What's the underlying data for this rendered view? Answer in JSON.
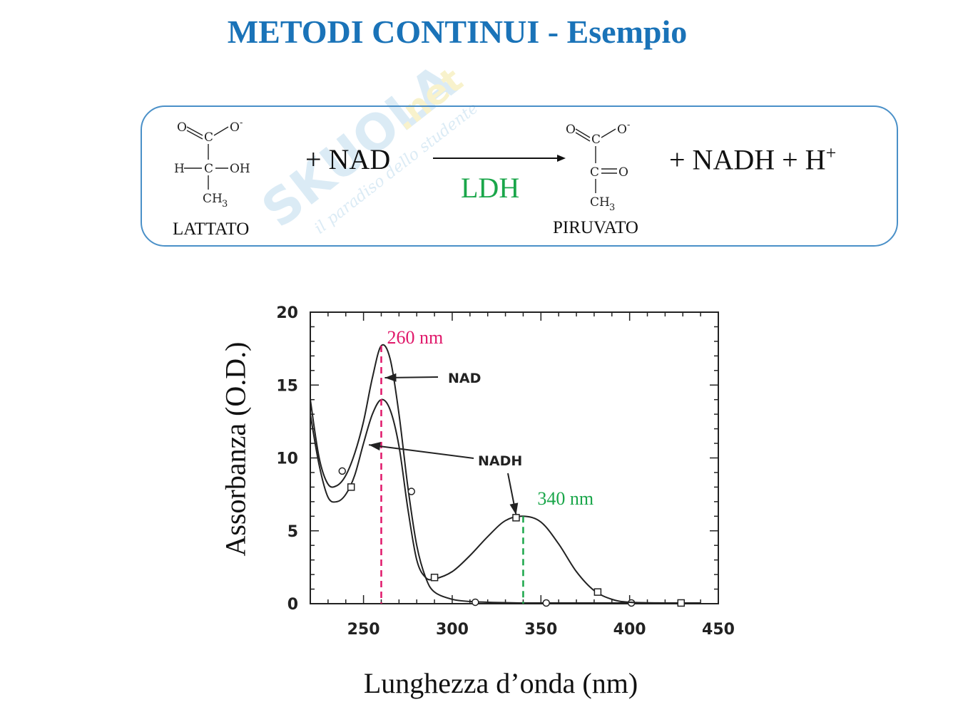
{
  "slide": {
    "title": "METODI CONTINUI - Esempio"
  },
  "watermark": {
    "brand": "SKUOLA",
    "tld": ".net",
    "tagline": "il paradiso dello studente"
  },
  "reaction": {
    "reactant_label": "LATTATO",
    "plus_nad": "+  NAD",
    "enzyme": "LDH",
    "product_label": "PIRUVATO",
    "products": "+ NADH + H",
    "h_charge": "+",
    "lattato_atoms": {
      "o_top": "O",
      "c1": "C",
      "o_minus": "O",
      "minus": "-",
      "h": "H",
      "c2": "C",
      "oh": "OH",
      "ch": "CH",
      "sub3": "3"
    },
    "piruvato_atoms": {
      "o_top": "O",
      "c1": "C",
      "o_minus": "O",
      "minus": "-",
      "c2": "C",
      "o_keto": "O",
      "ch": "CH",
      "sub3": "3"
    }
  },
  "chart_data": {
    "type": "line",
    "xlabel": "Lunghezza d’onda (nm)",
    "ylabel": "Assorbanza (O.D.)",
    "xlim": [
      220,
      450
    ],
    "ylim": [
      0,
      20
    ],
    "xticks": [
      250,
      300,
      350,
      400,
      450
    ],
    "yticks": [
      0,
      5,
      10,
      15,
      20
    ],
    "grid": false,
    "series": [
      {
        "name": "NAD",
        "marker": "circle",
        "x": [
          220,
          225,
          230,
          235,
          240,
          245,
          250,
          255,
          260,
          265,
          270,
          275,
          280,
          285,
          290,
          300,
          310,
          320,
          340,
          360,
          380,
          400,
          420,
          440
        ],
        "y": [
          14.0,
          10.0,
          8.2,
          8.1,
          8.8,
          10.3,
          12.5,
          15.5,
          17.7,
          16.8,
          13.0,
          8.0,
          4.0,
          1.8,
          0.8,
          0.3,
          0.15,
          0.1,
          0.05,
          0.05,
          0.05,
          0.05,
          0.05,
          0.05
        ],
        "markers_x": [
          238,
          277,
          313,
          353,
          401
        ],
        "markers_y": [
          9.1,
          7.7,
          0.1,
          0.05,
          0.05
        ]
      },
      {
        "name": "NADH",
        "marker": "square",
        "x": [
          220,
          225,
          230,
          235,
          240,
          245,
          250,
          255,
          260,
          265,
          270,
          275,
          280,
          285,
          290,
          300,
          310,
          320,
          330,
          340,
          350,
          360,
          370,
          380,
          390,
          400,
          420,
          440
        ],
        "y": [
          13.0,
          9.5,
          7.3,
          7.0,
          7.5,
          8.8,
          11.0,
          13.0,
          14.0,
          13.3,
          10.8,
          6.5,
          3.0,
          1.8,
          1.7,
          2.2,
          3.3,
          4.6,
          5.7,
          6.0,
          5.6,
          4.1,
          2.2,
          0.9,
          0.3,
          0.1,
          0.05,
          0.05
        ],
        "markers_x": [
          243,
          290,
          336,
          382,
          429
        ],
        "markers_y": [
          8.0,
          1.8,
          5.9,
          0.8,
          0.05
        ]
      }
    ],
    "annotations": [
      {
        "text": "260 nm",
        "x": 260,
        "y": 17.7,
        "color": "#e0186a",
        "style": "dashed-vertical"
      },
      {
        "text": "340 nm",
        "x": 340,
        "y": 6.0,
        "color": "#1aa64a",
        "style": "dashed-vertical"
      },
      {
        "text": "NAD",
        "arrow_to_x": 262,
        "arrow_to_y": 15.5
      },
      {
        "text": "NADH",
        "arrow_to_x": [
          253,
          336
        ],
        "arrow_to_y": [
          10.9,
          6.1
        ]
      }
    ]
  },
  "colors": {
    "title": "#1a73b8",
    "box_border": "#4a90c8",
    "enzyme": "#1aa64a",
    "peak_260": "#e0186a",
    "peak_340": "#1aa64a"
  }
}
